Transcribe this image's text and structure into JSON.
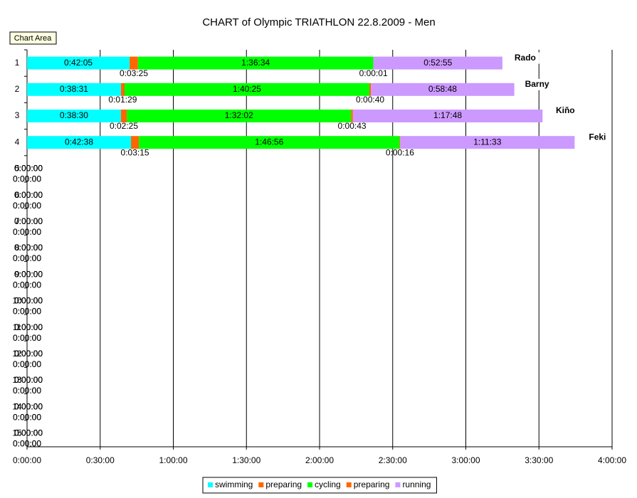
{
  "tooltip": "Chart Area",
  "chart_data": {
    "type": "stacked-barh",
    "title": "CHART of  Olympic TRIATHLON 22.8.2009 - Men",
    "categories": [
      "1",
      "2",
      "3",
      "4",
      "5",
      "6",
      "7",
      "8",
      "9",
      "10",
      "11",
      "12",
      "13",
      "14",
      "15"
    ],
    "annotations": [
      "Rado",
      "Barny",
      "Kiňo",
      "Feki"
    ],
    "xlim": [
      0,
      240
    ],
    "xticks": [
      {
        "value": 0,
        "label": "0:00:00"
      },
      {
        "value": 30,
        "label": "0:30:00"
      },
      {
        "value": 60,
        "label": "1:00:00"
      },
      {
        "value": 90,
        "label": "1:30:00"
      },
      {
        "value": 120,
        "label": "2:00:00"
      },
      {
        "value": 150,
        "label": "2:30:00"
      },
      {
        "value": 180,
        "label": "3:00:00"
      },
      {
        "value": 210,
        "label": "3:30:00"
      },
      {
        "value": 240,
        "label": "4:00:00"
      }
    ],
    "grid": true,
    "legend": "bottom",
    "series": [
      {
        "name": "swimming",
        "color": "#00ffff",
        "values": [
          42.083,
          38.517,
          38.5,
          42.633,
          0,
          0,
          0,
          0,
          0,
          0,
          0,
          0,
          0,
          0,
          0
        ],
        "value_labels": [
          "0:42:05",
          "0:38:31",
          "0:38:30",
          "0:42:38",
          "0:00:00",
          "0:00:00",
          "0:00:00",
          "0:00:00",
          "0:00:00",
          "0:00:00",
          "0:00:00",
          "0:00:00",
          "0:00:00",
          "0:00:00",
          "0:00:00"
        ]
      },
      {
        "name": "preparing",
        "color": "#ff6600",
        "values": [
          3.417,
          1.483,
          2.417,
          3.25,
          0,
          0,
          0,
          0,
          0,
          0,
          0,
          0,
          0,
          0,
          0
        ],
        "value_labels": [
          "0:03:25",
          "0:01:29",
          "0:02:25",
          "0:03:15",
          "0:00:00",
          "0:00:00",
          "0:00:00",
          "0:00:00",
          "0:00:00",
          "0:00:00",
          "0:00:00",
          "0:00:00",
          "0:00:00",
          "0:00:00",
          "0:00:00"
        ]
      },
      {
        "name": "cycling",
        "color": "#00ff00",
        "values": [
          96.567,
          100.417,
          92.033,
          106.933,
          0,
          0,
          0,
          0,
          0,
          0,
          0,
          0,
          0,
          0,
          0
        ],
        "value_labels": [
          "1:36:34",
          "1:40:25",
          "1:32:02",
          "1:46:56",
          "0:00:00",
          "0:00:00",
          "0:00:00",
          "0:00:00",
          "0:00:00",
          "0:00:00",
          "0:00:00",
          "0:00:00",
          "0:00:00",
          "0:00:00",
          "0:00:00"
        ]
      },
      {
        "name": "preparing",
        "color": "#ff6600",
        "values": [
          0.017,
          0.667,
          0.717,
          0.267,
          0,
          0,
          0,
          0,
          0,
          0,
          0,
          0,
          0,
          0,
          0
        ],
        "value_labels": [
          "0:00:01",
          "0:00:40",
          "0:00:43",
          "0:00:16",
          "0:00:00",
          "0:00:00",
          "0:00:00",
          "0:00:00",
          "0:00:00",
          "0:00:00",
          "0:00:00",
          "0:00:00",
          "0:00:00",
          "0:00:00",
          "0:00:00"
        ]
      },
      {
        "name": "running",
        "color": "#cc99ff",
        "values": [
          52.917,
          58.8,
          77.8,
          71.55,
          0,
          0,
          0,
          0,
          0,
          0,
          0,
          0,
          0,
          0,
          0
        ],
        "value_labels": [
          "0:52:55",
          "0:58:48",
          "1:17:48",
          "1:11:33",
          "0:00:00",
          "0:00:00",
          "0:00:00",
          "0:00:00",
          "0:00:00",
          "0:00:00",
          "0:00:00",
          "0:00:00",
          "0:00:00",
          "0:00:00",
          "0:00:00"
        ]
      }
    ]
  }
}
